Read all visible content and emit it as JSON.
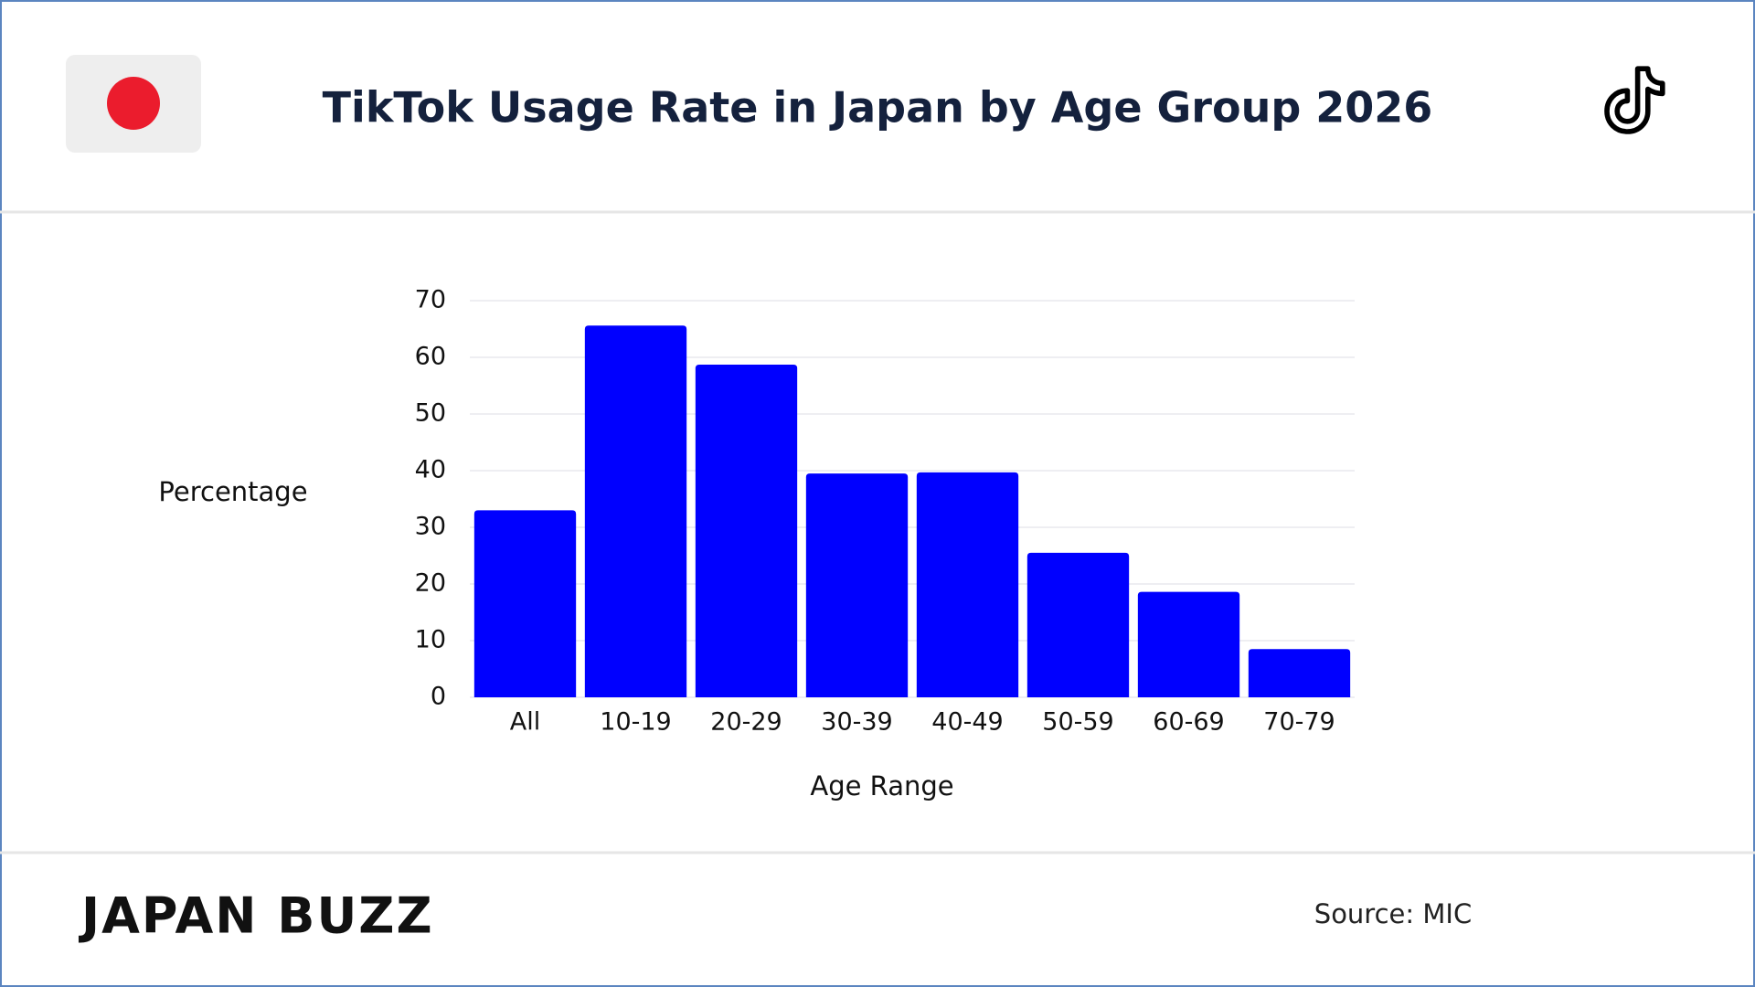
{
  "chart_data": {
    "type": "bar",
    "title": "TikTok Usage Rate in Japan by Age Group 2026",
    "categories": [
      "All",
      "10-19",
      "20-29",
      "30-39",
      "40-49",
      "50-59",
      "60-69",
      "70-79"
    ],
    "values": [
      33.0,
      65.6,
      58.7,
      39.5,
      39.7,
      25.5,
      18.6,
      8.5
    ],
    "color": "#0000ff",
    "xlabel": "Age Range",
    "ylabel": "Percentage",
    "ylim": [
      0,
      70
    ],
    "yticks": [
      0,
      10,
      20,
      30,
      40,
      50,
      60,
      70
    ],
    "grid": true
  },
  "footer": {
    "brand": "JAPAN BUZZ",
    "source": "Source: MIC"
  }
}
